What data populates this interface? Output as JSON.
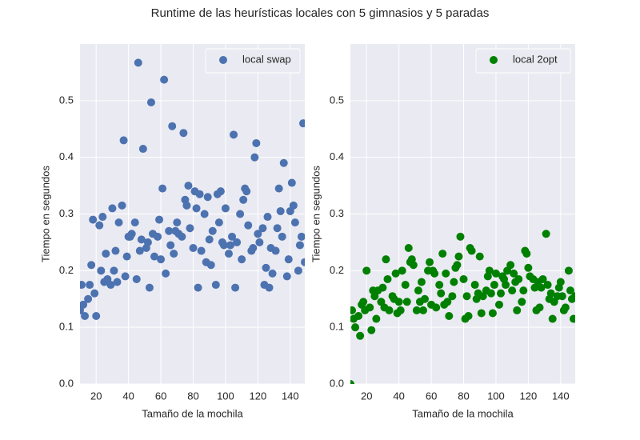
{
  "title": "Runtime de las heurísticas locales con 5 gimnasios y 5 paradas",
  "chart_data": [
    {
      "type": "scatter",
      "xlabel": "Tamaño de la mochila",
      "ylabel": "Tiempo en segundos",
      "x": [
        10,
        11,
        12,
        13,
        15,
        16,
        17,
        18,
        19,
        20,
        22,
        23,
        24,
        25,
        26,
        27,
        29,
        30,
        31,
        32,
        33,
        34,
        36,
        37,
        38,
        39,
        40,
        41,
        42,
        44,
        45,
        46,
        47,
        48,
        49,
        51,
        52,
        53,
        54,
        55,
        56,
        58,
        59,
        60,
        61,
        62,
        63,
        65,
        66,
        67,
        68,
        69,
        70,
        71,
        73,
        74,
        75,
        76,
        77,
        78,
        80,
        81,
        82,
        83,
        84,
        85,
        87,
        88,
        89,
        90,
        91,
        92,
        94,
        95,
        96,
        97,
        98,
        99,
        100,
        102,
        103,
        104,
        105,
        106,
        107,
        109,
        110,
        111,
        112,
        113,
        114,
        116,
        117,
        118,
        119,
        120,
        121,
        123,
        124,
        125,
        126,
        127,
        128,
        129,
        131,
        132,
        133,
        134,
        135,
        136,
        138,
        139,
        140,
        141,
        142,
        143,
        145,
        146,
        147,
        148,
        149
      ],
      "series": [
        {
          "name": "local swap",
          "color": "#4c72b0",
          "values": [
            0.13,
            0.175,
            0.14,
            0.12,
            0.15,
            0.175,
            0.21,
            0.29,
            0.16,
            0.12,
            0.28,
            0.2,
            0.295,
            0.18,
            0.23,
            0.185,
            0.175,
            0.31,
            0.2,
            0.235,
            0.18,
            0.285,
            0.315,
            0.43,
            0.19,
            0.225,
            0.26,
            0.26,
            0.265,
            0.285,
            0.185,
            0.567,
            0.235,
            0.255,
            0.415,
            0.24,
            0.25,
            0.17,
            0.497,
            0.265,
            0.225,
            0.26,
            0.29,
            0.22,
            0.345,
            0.537,
            0.195,
            0.27,
            0.245,
            0.455,
            0.23,
            0.27,
            0.285,
            0.265,
            0.26,
            0.443,
            0.325,
            0.315,
            0.35,
            0.275,
            0.24,
            0.34,
            0.31,
            0.17,
            0.335,
            0.235,
            0.3,
            0.215,
            0.33,
            0.255,
            0.21,
            0.27,
            0.175,
            0.335,
            0.285,
            0.34,
            0.25,
            0.245,
            0.31,
            0.23,
            0.245,
            0.26,
            0.44,
            0.17,
            0.25,
            0.3,
            0.22,
            0.325,
            0.345,
            0.34,
            0.28,
            0.235,
            0.24,
            0.4,
            0.425,
            0.265,
            0.25,
            0.275,
            0.175,
            0.205,
            0.295,
            0.17,
            0.24,
            0.195,
            0.235,
            0.275,
            0.345,
            0.305,
            0.26,
            0.39,
            0.19,
            0.22,
            0.305,
            0.355,
            0.315,
            0.285,
            0.2,
            0.245,
            0.26,
            0.46,
            0.215
          ]
        }
      ],
      "xlim": [
        10,
        149
      ],
      "ylim": [
        0,
        0.6
      ],
      "xticks": [
        20,
        40,
        60,
        80,
        100,
        120,
        140
      ],
      "yticks": [
        {
          "value": 0,
          "label": "0.0"
        },
        0.1,
        0.2,
        0.3,
        0.4,
        0.5
      ],
      "grid": true,
      "legend": "upper right"
    },
    {
      "type": "scatter",
      "xlabel": "Tamaño de la mochila",
      "ylabel": "Tiempo en segundos",
      "x": [
        10,
        11,
        12,
        13,
        15,
        16,
        17,
        18,
        19,
        20,
        22,
        23,
        24,
        25,
        26,
        27,
        29,
        30,
        31,
        32,
        33,
        34,
        36,
        37,
        38,
        39,
        40,
        41,
        42,
        44,
        45,
        46,
        47,
        48,
        49,
        51,
        52,
        53,
        54,
        55,
        56,
        58,
        59,
        60,
        61,
        62,
        63,
        65,
        66,
        67,
        68,
        69,
        70,
        71,
        73,
        74,
        75,
        76,
        77,
        78,
        80,
        81,
        82,
        83,
        84,
        85,
        87,
        88,
        89,
        90,
        91,
        92,
        94,
        95,
        96,
        97,
        98,
        99,
        100,
        102,
        103,
        104,
        105,
        106,
        107,
        109,
        110,
        111,
        112,
        113,
        114,
        116,
        117,
        118,
        119,
        120,
        121,
        123,
        124,
        125,
        126,
        127,
        128,
        129,
        131,
        132,
        133,
        134,
        135,
        136,
        138,
        139,
        140,
        141,
        142,
        143,
        145,
        146,
        147,
        148,
        149
      ],
      "series": [
        {
          "name": "local 2opt",
          "color": "#008000",
          "values": [
            0.0,
            0.13,
            0.115,
            0.1,
            0.12,
            0.085,
            0.14,
            0.145,
            0.13,
            0.2,
            0.135,
            0.095,
            0.165,
            0.155,
            0.115,
            0.165,
            0.145,
            0.17,
            0.135,
            0.22,
            0.185,
            0.13,
            0.155,
            0.15,
            0.195,
            0.125,
            0.145,
            0.13,
            0.2,
            0.175,
            0.145,
            0.24,
            0.215,
            0.22,
            0.21,
            0.13,
            0.165,
            0.145,
            0.18,
            0.13,
            0.15,
            0.2,
            0.215,
            0.14,
            0.2,
            0.195,
            0.135,
            0.175,
            0.16,
            0.23,
            0.14,
            0.195,
            0.145,
            0.12,
            0.155,
            0.18,
            0.205,
            0.21,
            0.225,
            0.26,
            0.185,
            0.115,
            0.155,
            0.12,
            0.24,
            0.235,
            0.175,
            0.15,
            0.16,
            0.225,
            0.125,
            0.155,
            0.165,
            0.19,
            0.2,
            0.16,
            0.125,
            0.175,
            0.195,
            0.14,
            0.16,
            0.19,
            0.185,
            0.175,
            0.2,
            0.21,
            0.165,
            0.195,
            0.18,
            0.13,
            0.185,
            0.145,
            0.165,
            0.235,
            0.23,
            0.205,
            0.19,
            0.185,
            0.17,
            0.13,
            0.18,
            0.135,
            0.17,
            0.185,
            0.265,
            0.175,
            0.15,
            0.16,
            0.115,
            0.145,
            0.155,
            0.17,
            0.18,
            0.155,
            0.13,
            0.135,
            0.2,
            0.165,
            0.15,
            0.115,
            0.155
          ]
        }
      ],
      "xlim": [
        10,
        149
      ],
      "ylim": [
        0,
        0.6
      ],
      "xticks": [
        20,
        40,
        60,
        80,
        100,
        120,
        140
      ],
      "yticks": [
        {
          "value": 0,
          "label": "0.0"
        },
        0.1,
        0.2,
        0.3,
        0.4,
        0.5
      ],
      "grid": true,
      "legend": "upper right"
    }
  ]
}
